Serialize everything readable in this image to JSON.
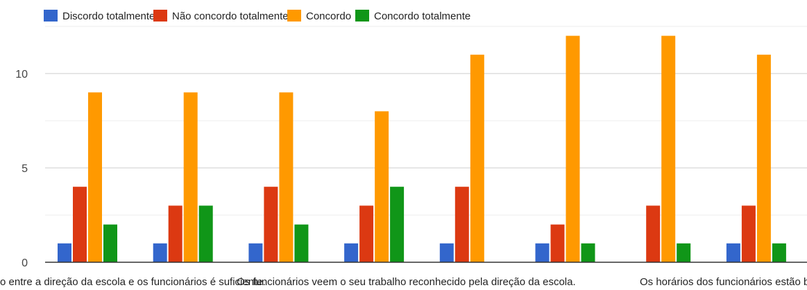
{
  "chart_data": {
    "type": "bar",
    "legend_position": "top-left",
    "grid": true,
    "ylim": [
      0,
      12
    ],
    "yticks": [
      0,
      5,
      10
    ],
    "categories": [
      "A comunicação entre a direção da escola e os funcionários é suficiente.",
      "",
      "Os funcionários veem o seu trabalho reconhecido pela direção da escola.",
      "",
      "",
      "",
      "Os horários dos funcionários estão bem",
      ""
    ],
    "visible_category_labels": [
      "o entre a direção da escola e os funcionários é suficiente.",
      "Os funcionários veem o seu trabalho reconhecido pela direção da escola.",
      "Os horários dos funcionários estão bem"
    ],
    "series": [
      {
        "name": "Discordo totalmente",
        "color": "#3366cc",
        "values": [
          1,
          1,
          1,
          1,
          1,
          1,
          0,
          1
        ]
      },
      {
        "name": "Não concordo totalmente",
        "color": "#dc3912",
        "values": [
          4,
          3,
          4,
          3,
          4,
          2,
          3,
          3
        ]
      },
      {
        "name": "Concordo",
        "color": "#ff9900",
        "values": [
          9,
          9,
          9,
          8,
          11,
          12,
          12,
          11
        ]
      },
      {
        "name": "Concordo totalmente",
        "color": "#109618",
        "values": [
          2,
          3,
          2,
          4,
          0,
          1,
          1,
          1
        ]
      }
    ]
  }
}
